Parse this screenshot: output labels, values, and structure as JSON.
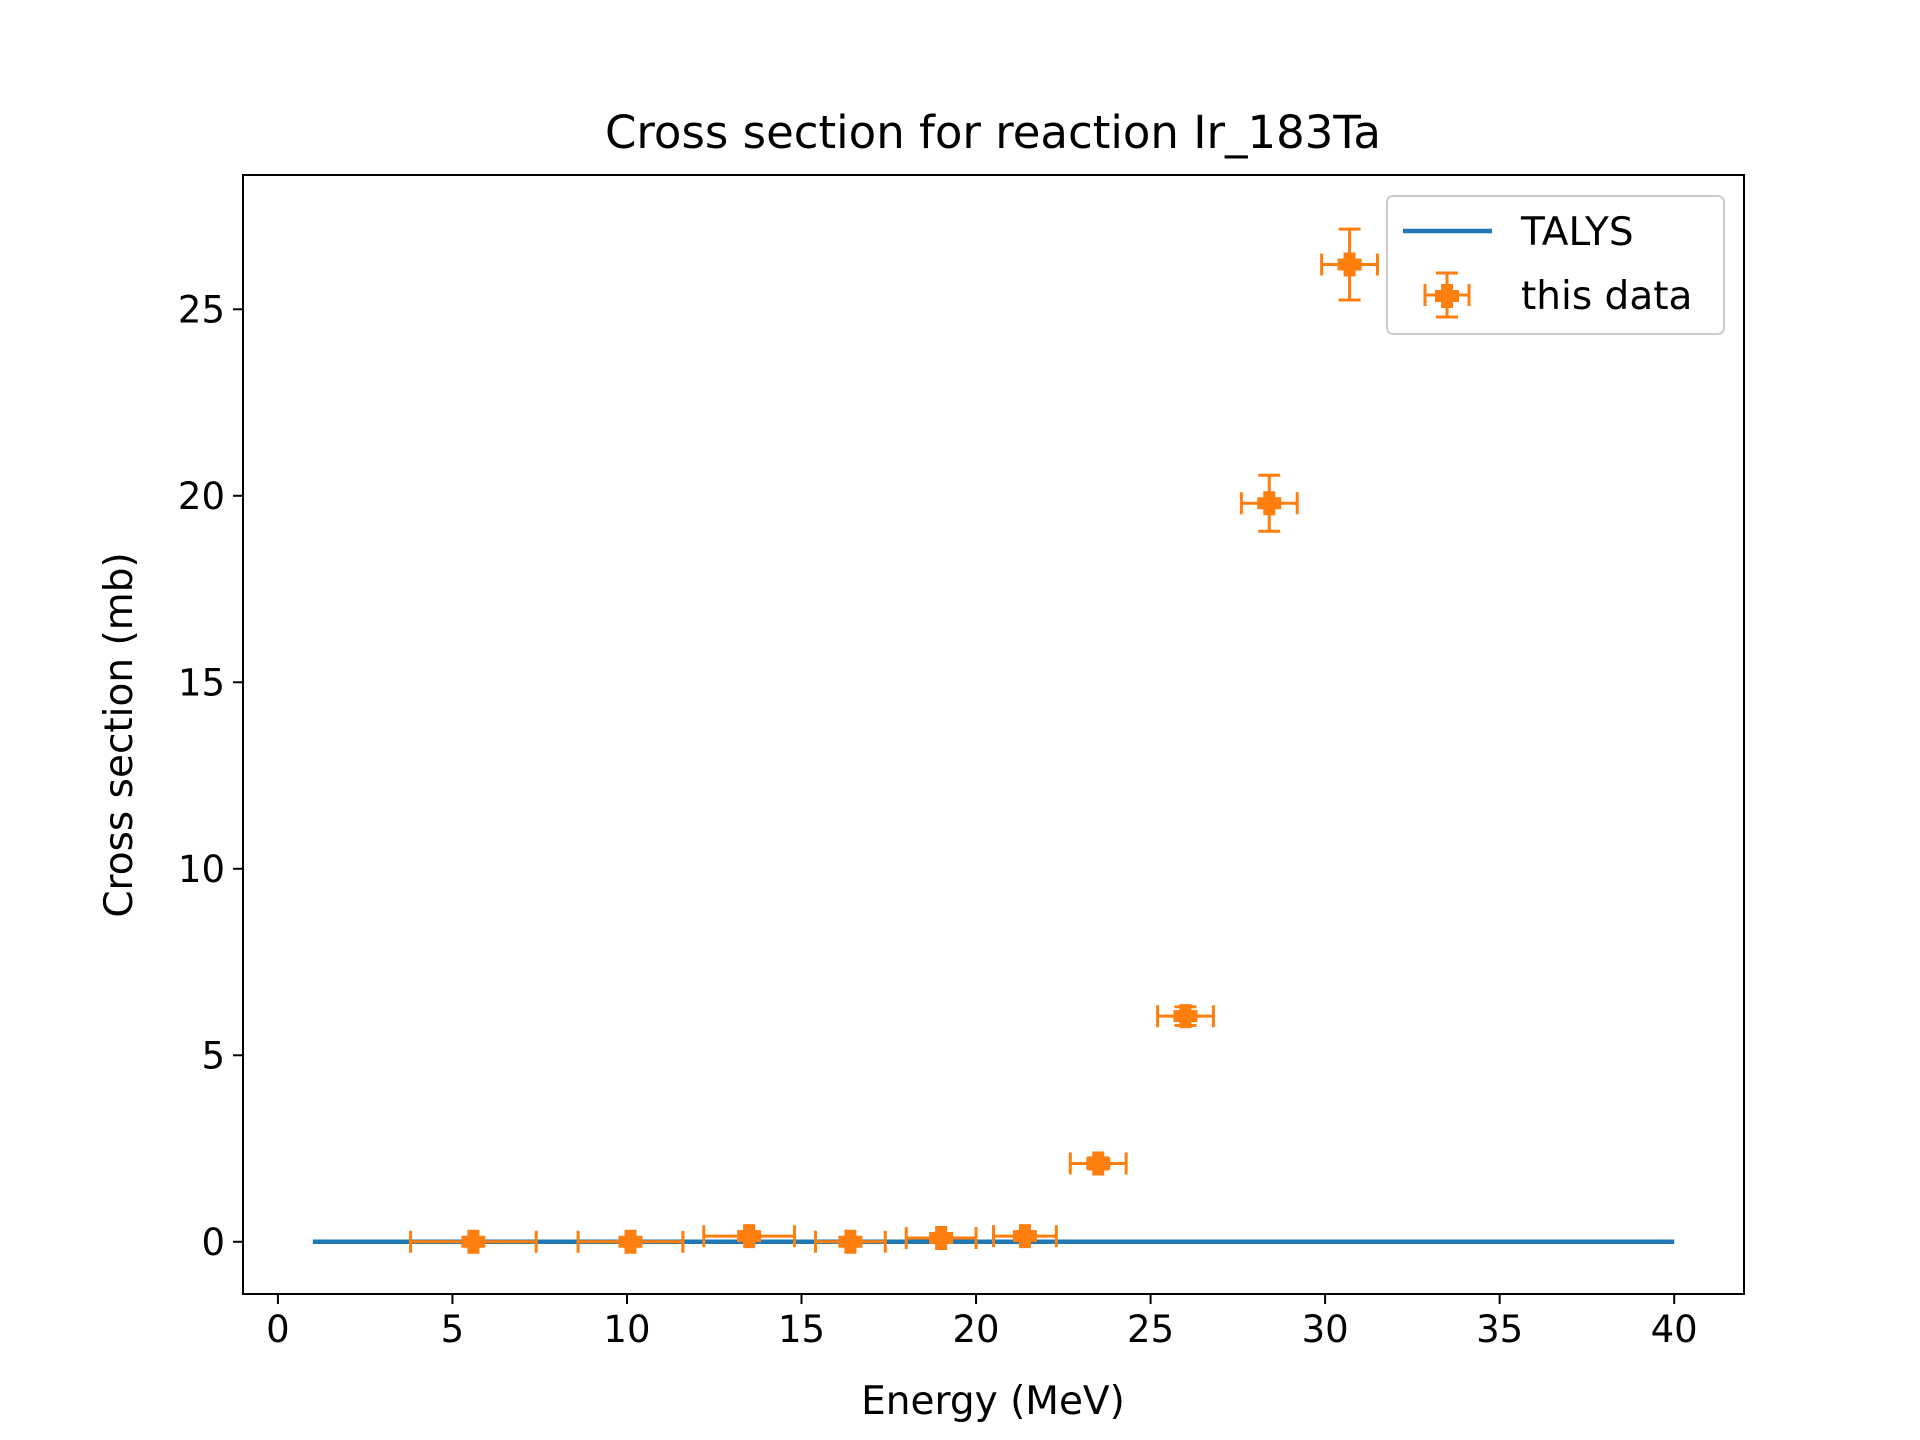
{
  "chart_data": {
    "type": "scatter",
    "title": "Cross section for reaction Ir_183Ta",
    "xlabel": "Energy (MeV)",
    "ylabel": "Cross section (mb)",
    "xlim": [
      -1,
      42
    ],
    "ylim": [
      -1.4,
      28.6
    ],
    "xticks": [
      0,
      5,
      10,
      15,
      20,
      25,
      30,
      35,
      40
    ],
    "yticks": [
      0,
      5,
      10,
      15,
      20,
      25
    ],
    "grid": false,
    "legend_position": "top-right",
    "colors": {
      "talys": "#1f77b4",
      "data": "#ff7f0e"
    },
    "series": [
      {
        "name": "TALYS",
        "kind": "line",
        "x": [
          1,
          40
        ],
        "y": [
          0,
          0
        ]
      },
      {
        "name": "this data",
        "kind": "errorbar",
        "points": [
          {
            "x": 5.6,
            "y": 0.0,
            "xerr": 1.8,
            "yerr": 0.0
          },
          {
            "x": 10.1,
            "y": 0.0,
            "xerr": 1.5,
            "yerr": 0.0
          },
          {
            "x": 13.5,
            "y": 0.15,
            "xerr": 1.3,
            "yerr": 0.1
          },
          {
            "x": 16.4,
            "y": 0.0,
            "xerr": 1.0,
            "yerr": 0.0
          },
          {
            "x": 19.0,
            "y": 0.1,
            "xerr": 1.0,
            "yerr": 0.1
          },
          {
            "x": 21.4,
            "y": 0.15,
            "xerr": 0.9,
            "yerr": 0.1
          },
          {
            "x": 23.5,
            "y": 2.1,
            "xerr": 0.8,
            "yerr": 0.15
          },
          {
            "x": 26.0,
            "y": 6.05,
            "xerr": 0.8,
            "yerr": 0.25
          },
          {
            "x": 28.4,
            "y": 19.8,
            "xerr": 0.8,
            "yerr": 0.75
          },
          {
            "x": 30.7,
            "y": 26.2,
            "xerr": 0.8,
            "yerr": 0.95
          }
        ]
      }
    ]
  }
}
